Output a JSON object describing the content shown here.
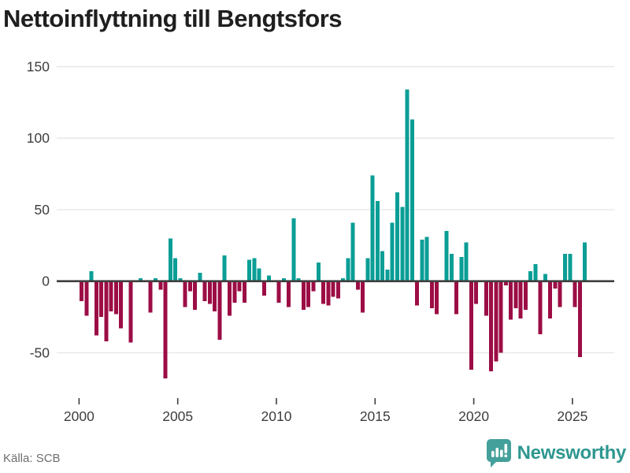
{
  "title": "Nettoinflyttning till Bengtsfors",
  "source": "Källa: SCB",
  "brand": {
    "name": "Newsworthy"
  },
  "colors": {
    "positive_bar": "#0A9E96",
    "negative_bar": "#9C0D45",
    "zero_line": "#3F3F3F",
    "grid_line": "#E8E8E8",
    "axis_text": "#3D3D3D",
    "title_text": "#1F1F1F",
    "source_text": "#6E6E6E",
    "brand_badge": "#44A09A",
    "brand_text": "#2E9790"
  },
  "chart_data": {
    "type": "bar",
    "title": "Nettoinflyttning till Bengtsfors",
    "xlabel": "",
    "ylabel": "",
    "frequency": "quarterly",
    "start_year": 2000,
    "start_quarter": 1,
    "x_ticks": [
      2000,
      2005,
      2010,
      2015,
      2020,
      2025
    ],
    "y_ticks": [
      150,
      100,
      50,
      0,
      -50
    ],
    "ylim": [
      -75,
      160
    ],
    "grid": true,
    "legend": false,
    "values": [
      -14,
      -24,
      7,
      -38,
      -25,
      -42,
      -21,
      -23,
      -33,
      0,
      -43,
      0,
      2,
      0,
      -22,
      2,
      -6,
      -68,
      30,
      16,
      2,
      -18,
      -7,
      -20,
      6,
      -14,
      -16,
      -21,
      -41,
      18,
      -24,
      -15,
      -7,
      -15,
      15,
      16,
      9,
      -10,
      4,
      0,
      -15,
      2,
      -18,
      44,
      2,
      -20,
      -18,
      -7,
      13,
      -16,
      -17,
      -11,
      -12,
      2,
      16,
      41,
      -6,
      -22,
      16,
      74,
      56,
      21,
      8,
      41,
      62,
      52,
      134,
      113,
      -17,
      29,
      31,
      -19,
      -23,
      0,
      35,
      19,
      -23,
      17,
      27,
      -62,
      -16,
      0,
      -24,
      -63,
      -56,
      -50,
      -3,
      -27,
      -19,
      -26,
      -20,
      7,
      12,
      -37,
      5,
      -26,
      -5,
      -18,
      19,
      19,
      -18,
      -53,
      27
    ]
  }
}
